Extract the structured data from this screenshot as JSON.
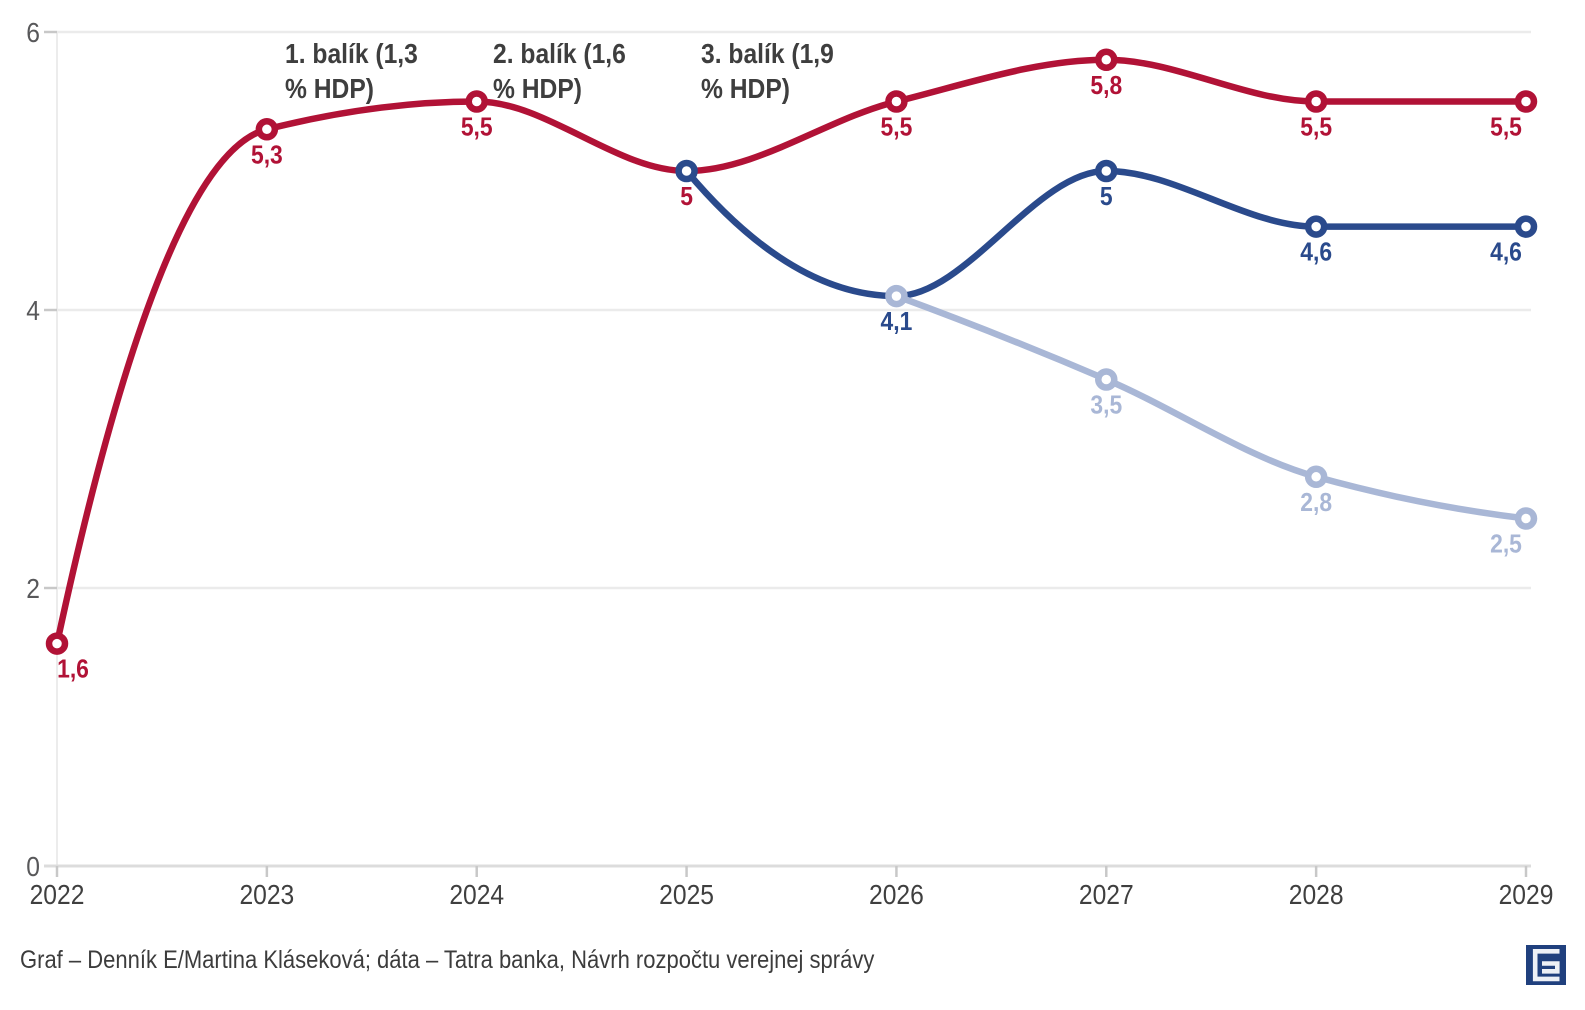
{
  "chart_data": {
    "type": "line",
    "title": "",
    "xlabel": "",
    "ylabel": "",
    "x_ticks": [
      "2022",
      "2023",
      "2024",
      "2025",
      "2026",
      "2027",
      "2028",
      "2029"
    ],
    "y_ticks": [
      "0",
      "2",
      "4",
      "6"
    ],
    "ylim": [
      0,
      6
    ],
    "grid": true,
    "legend": "none",
    "series": [
      {
        "name": "red-line",
        "color": "#b11236",
        "points": [
          {
            "x": 2022,
            "y": 1.6,
            "label": "1,6",
            "label_dx": 16
          },
          {
            "x": 2023,
            "y": 5.3,
            "label": "5,3"
          },
          {
            "x": 2024,
            "y": 5.5,
            "label": "5,5"
          },
          {
            "x": 2025,
            "y": 5.0,
            "label": "5",
            "marker": false
          },
          {
            "x": 2026,
            "y": 5.5,
            "label": "5,5"
          },
          {
            "x": 2027,
            "y": 5.8,
            "label": "5,8"
          },
          {
            "x": 2028,
            "y": 5.5,
            "label": "5,5"
          },
          {
            "x": 2029,
            "y": 5.5,
            "label": "5,5",
            "label_dx": -20
          }
        ]
      },
      {
        "name": "dark-blue-line",
        "color": "#2a4a8c",
        "points": [
          {
            "x": 2025,
            "y": 5.0
          },
          {
            "x": 2026,
            "y": 4.1,
            "label": "4,1",
            "marker": false
          },
          {
            "x": 2027,
            "y": 5.0,
            "label": "5"
          },
          {
            "x": 2028,
            "y": 4.6,
            "label": "4,6"
          },
          {
            "x": 2029,
            "y": 4.6,
            "label": "4,6",
            "label_dx": -20
          }
        ]
      },
      {
        "name": "light-blue-line",
        "color": "#a9b7d6",
        "points": [
          {
            "x": 2026,
            "y": 4.1
          },
          {
            "x": 2027,
            "y": 3.5,
            "label": "3,5"
          },
          {
            "x": 2028,
            "y": 2.8,
            "label": "2,8"
          },
          {
            "x": 2029,
            "y": 2.5,
            "label": "2,5",
            "label_dx": -20
          }
        ]
      }
    ],
    "annotations": [
      {
        "lines": [
          "1. balík (1,3",
          "% HDP)"
        ]
      },
      {
        "lines": [
          "2. balík (1,6",
          "% HDP)"
        ]
      },
      {
        "lines": [
          "3. balík (1,9",
          "% HDP)"
        ]
      }
    ]
  },
  "footer": {
    "credit": "Graf – Denník E/Martina Kláseková; dáta – Tatra banka, Návrh rozpočtu verejnej správy",
    "logo": "dennik-e-logo"
  },
  "colors": {
    "red": "#b11236",
    "dark_blue": "#2a4a8c",
    "light_blue": "#a9b7d6",
    "logo_blue": "#20407e",
    "gridline": "#ebebeb",
    "axis": "#dcdcdc",
    "tick": "#c8c8c8",
    "x_label": "#3f3f3f",
    "y_label": "#58585a",
    "annotation": "#3e3e3e"
  }
}
